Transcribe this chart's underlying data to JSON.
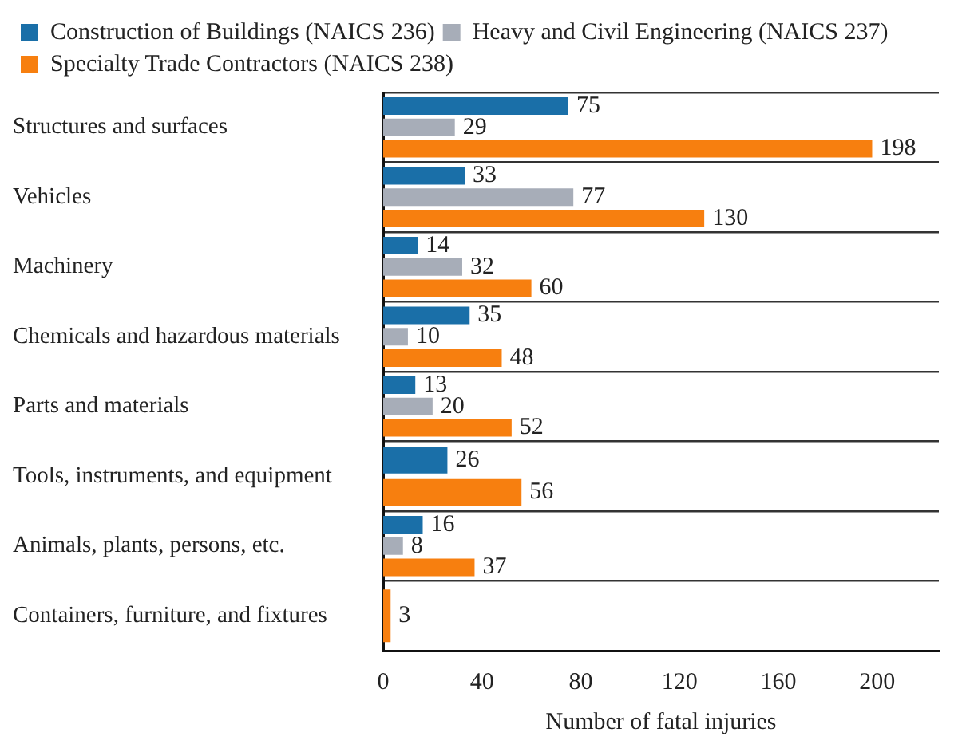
{
  "chart_data": {
    "type": "bar",
    "orientation": "horizontal",
    "xlabel": "Number of fatal injuries",
    "categories": [
      "Structures and surfaces",
      "Vehicles",
      "Machinery",
      "Chemicals and hazardous materials",
      "Parts and materials",
      "Tools, instruments, and equipment",
      "Animals, plants, persons, etc.",
      "Containers, furniture, and fixtures"
    ],
    "series": [
      {
        "name": "Construction of Buildings (NAICS 236)",
        "color": "#1a6fa8",
        "values": [
          75,
          33,
          14,
          35,
          13,
          26,
          16,
          null
        ]
      },
      {
        "name": "Heavy and Civil Engineering (NAICS 237)",
        "color": "#a7adb8",
        "values": [
          29,
          77,
          32,
          10,
          20,
          null,
          8,
          null
        ]
      },
      {
        "name": "Specialty Trade Contractors (NAICS 238)",
        "color": "#f77f0f",
        "values": [
          198,
          130,
          60,
          48,
          52,
          56,
          37,
          3
        ]
      }
    ],
    "xlim": [
      0,
      225
    ],
    "xticks": [
      0,
      40,
      80,
      120,
      160,
      200
    ],
    "grid": "y",
    "legend": "top left",
    "data_labels": true
  }
}
